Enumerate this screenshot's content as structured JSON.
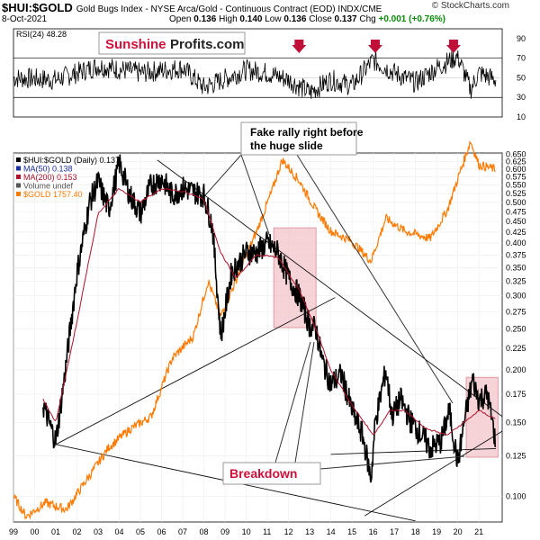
{
  "header": {
    "symbol": "$HUI:$GOLD",
    "description": "Gold Bugs Index - NYSE Arca/Gold - Continuous Contract (EOD)",
    "exchange": "INDX/CME",
    "date": "8-Oct-2021",
    "open_label": "Open",
    "open": "0.136",
    "high_label": "High",
    "high": "0.140",
    "low_label": "Low",
    "low": "0.136",
    "close_label": "Close",
    "close": "0.137",
    "chg_label": "Chg",
    "chg": "+0.001 (+0.76%)",
    "brand": "© StockCharts.com"
  },
  "watermark": {
    "part1": "Sunshine",
    "part2": "Profits.com"
  },
  "annotations": {
    "fake_rally_line1": "Fake rally right before",
    "fake_rally_line2": "the huge slide",
    "breakdown": "Breakdown"
  },
  "colors": {
    "price": "#000000",
    "ma50": "#1a2fa0",
    "ma200": "#b0102a",
    "gold": "#ff7a00",
    "arrow": "#c0103a",
    "highlight": "#f2c4c8",
    "annotation_text": "#d0103a"
  },
  "chart_data": [
    {
      "type": "line",
      "name": "RSI panel",
      "legend": "RSI(24) 48.28",
      "ylim": [
        10,
        100
      ],
      "y_ticks": [
        10,
        30,
        50,
        70,
        90
      ],
      "reference_lines": [
        30,
        50,
        70
      ],
      "x": [
        1999,
        2001,
        2003,
        2005,
        2007,
        2008,
        2010,
        2011,
        2012,
        2013,
        2014,
        2015,
        2016,
        2017,
        2018,
        2019,
        2020,
        2020.6,
        2021,
        2021.8
      ],
      "series": [
        {
          "name": "RSI(24)",
          "values": [
            50,
            48,
            62,
            55,
            60,
            40,
            58,
            55,
            48,
            35,
            48,
            42,
            68,
            55,
            45,
            60,
            72,
            38,
            55,
            48
          ]
        }
      ],
      "markers": [
        2012.5,
        2016.1,
        2019.8
      ]
    },
    {
      "type": "line",
      "name": "Price panel",
      "y_scale": "log",
      "ylim": [
        0.087,
        0.655
      ],
      "y_ticks": [
        0.1,
        0.125,
        0.15,
        0.175,
        0.2,
        0.225,
        0.25,
        0.275,
        0.3,
        0.325,
        0.35,
        0.375,
        0.4,
        0.425,
        0.45,
        0.475,
        0.5,
        0.525,
        0.55,
        0.575,
        0.6,
        0.625,
        0.65
      ],
      "x_ticks": [
        "99",
        "00",
        "01",
        "02",
        "03",
        "04",
        "05",
        "06",
        "07",
        "08",
        "09",
        "10",
        "11",
        "12",
        "13",
        "14",
        "15",
        "16",
        "17",
        "18",
        "19",
        "20",
        "21"
      ],
      "xlim": [
        1999,
        2022.1
      ],
      "legend_entries": [
        "$HUI:$GOLD (Daily) 0.137",
        "MA(50) 0.138",
        "MA(200) 0.153",
        "Volume undef",
        "$GOLD 1757.40"
      ],
      "series": [
        {
          "name": "$HUI:$GOLD (Daily) 0.137",
          "x": [
            2000.4,
            2001.0,
            2001.4,
            2002.0,
            2002.6,
            2003.0,
            2003.5,
            2004.0,
            2004.5,
            2005.0,
            2005.5,
            2006.0,
            2006.5,
            2007.0,
            2007.5,
            2008.0,
            2008.4,
            2008.8,
            2009.3,
            2010.0,
            2010.5,
            2011.0,
            2011.5,
            2012.0,
            2012.5,
            2013.0,
            2013.3,
            2013.6,
            2014.0,
            2014.5,
            2015.0,
            2015.5,
            2015.9,
            2016.1,
            2016.6,
            2016.9,
            2017.3,
            2017.8,
            2018.3,
            2018.7,
            2019.2,
            2019.6,
            2020.0,
            2020.3,
            2020.7,
            2021.0,
            2021.4,
            2021.77
          ],
          "values": [
            0.165,
            0.135,
            0.19,
            0.34,
            0.5,
            0.56,
            0.48,
            0.62,
            0.52,
            0.47,
            0.55,
            0.57,
            0.52,
            0.54,
            0.53,
            0.52,
            0.44,
            0.24,
            0.34,
            0.38,
            0.38,
            0.4,
            0.38,
            0.33,
            0.3,
            0.255,
            0.25,
            0.21,
            0.185,
            0.195,
            0.16,
            0.14,
            0.11,
            0.15,
            0.2,
            0.155,
            0.17,
            0.15,
            0.14,
            0.13,
            0.135,
            0.16,
            0.12,
            0.15,
            0.19,
            0.17,
            0.175,
            0.137
          ]
        },
        {
          "name": "MA(200) 0.153",
          "x": [
            2000.4,
            2001.0,
            2002.0,
            2003.0,
            2004.0,
            2005.0,
            2006.0,
            2007.0,
            2008.0,
            2008.8,
            2009.5,
            2010.5,
            2011.5,
            2012.5,
            2013.3,
            2014.0,
            2015.0,
            2016.0,
            2016.8,
            2017.5,
            2018.5,
            2019.5,
            2020.3,
            2021.0,
            2021.77
          ],
          "values": [
            0.17,
            0.15,
            0.26,
            0.47,
            0.54,
            0.5,
            0.54,
            0.53,
            0.51,
            0.38,
            0.33,
            0.375,
            0.37,
            0.31,
            0.25,
            0.2,
            0.165,
            0.14,
            0.16,
            0.16,
            0.145,
            0.14,
            0.15,
            0.16,
            0.153
          ]
        },
        {
          "name": "$GOLD 1757.40",
          "axis_value_range": [
            252,
            1921
          ],
          "x": [
            1999.0,
            1999.6,
            2000.5,
            2001.5,
            2002.5,
            2003.5,
            2004.5,
            2005.5,
            2006.5,
            2007.5,
            2008.2,
            2008.8,
            2009.5,
            2010.5,
            2011.2,
            2011.7,
            2012.5,
            2013.3,
            2014.0,
            2015.0,
            2015.9,
            2016.6,
            2017.5,
            2018.7,
            2019.5,
            2020.6,
            2021.0,
            2021.77
          ],
          "values": [
            290,
            260,
            280,
            270,
            320,
            380,
            420,
            450,
            620,
            700,
            950,
            780,
            950,
            1250,
            1550,
            1850,
            1650,
            1400,
            1250,
            1180,
            1060,
            1340,
            1250,
            1200,
            1400,
            2050,
            1800,
            1757
          ]
        }
      ]
    }
  ]
}
